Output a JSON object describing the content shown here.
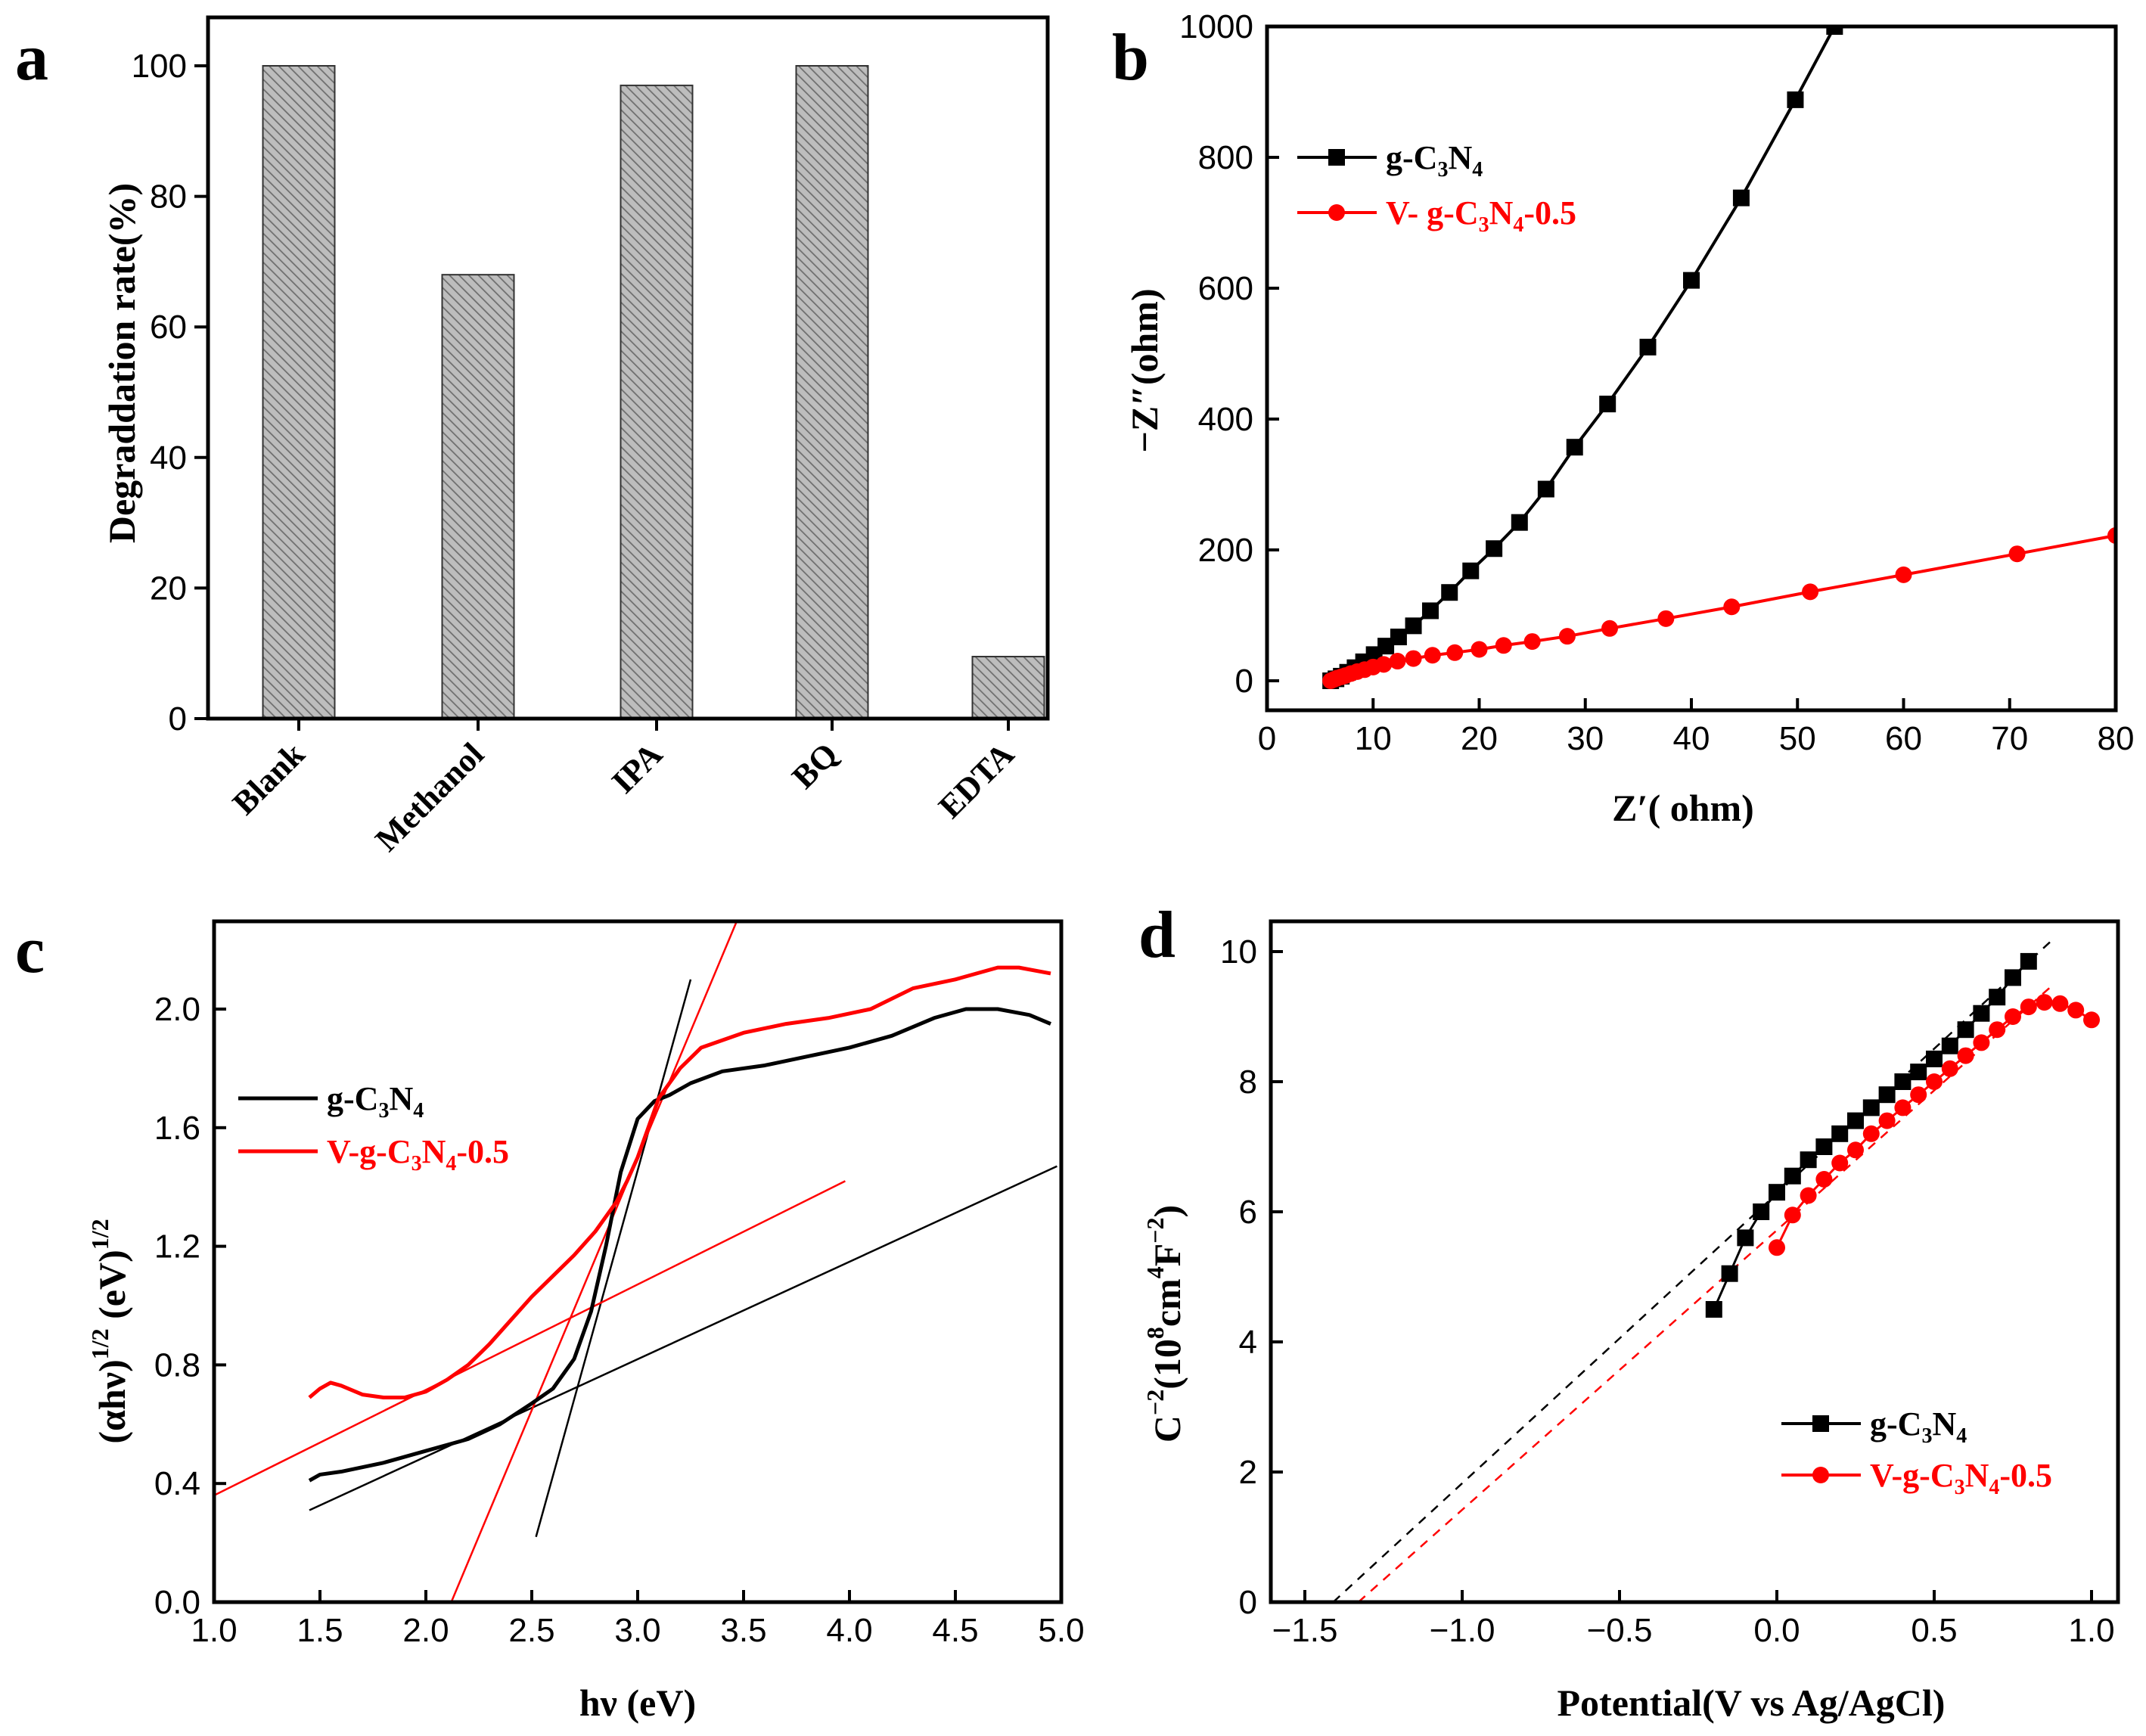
{
  "chart_data": [
    {
      "panel": "a",
      "type": "bar",
      "ylabel": "Degraddation rate(%)",
      "xlabel": "",
      "ylim": [
        0,
        105
      ],
      "yticks": [
        0,
        20,
        40,
        60,
        80,
        100
      ],
      "categories": [
        "Blank",
        "Methanol",
        "IPA",
        "BQ",
        "EDTA"
      ],
      "values": [
        100,
        68,
        97,
        100,
        9.5
      ],
      "bar_fill": "#a8a8a8",
      "bar_hatch": "diagonal"
    },
    {
      "panel": "b",
      "type": "scatter",
      "xlabel": "Z′( ohm)",
      "ylabel": "−Z″(ohm)",
      "xlim": [
        0,
        80
      ],
      "ylim": [
        -50,
        1000
      ],
      "xticks": [
        0,
        10,
        20,
        30,
        40,
        50,
        60,
        70,
        80
      ],
      "yticks": [
        0,
        200,
        400,
        600,
        800,
        1000
      ],
      "legend_position": "top-left",
      "series": [
        {
          "name": "g-C3N4",
          "label_parts": [
            "g-C",
            "3",
            "N",
            "4"
          ],
          "color": "#000000",
          "marker": "square",
          "x": [
            6,
            6.5,
            7,
            7.6,
            8.3,
            9.1,
            10.1,
            11.2,
            12.4,
            13.8,
            15.4,
            17.2,
            19.2,
            21.4,
            23.8,
            26.3,
            29.0,
            32.1,
            35.9,
            40.0,
            44.7,
            49.8,
            53.5
          ],
          "y": [
            0,
            3,
            7,
            13,
            20,
            29,
            40,
            53,
            67,
            84,
            107,
            135,
            168,
            202,
            242,
            293,
            357,
            423,
            510,
            612,
            738,
            888,
            1000
          ]
        },
        {
          "name": "V- g-C3N4-0.5",
          "label_parts": [
            "V- g-C",
            "3",
            "N",
            "4",
            "-0.5"
          ],
          "color": "#ff0000",
          "marker": "circle",
          "x": [
            6,
            6.3,
            6.6,
            7,
            7.4,
            7.9,
            8.5,
            9.2,
            10.0,
            11.0,
            12.3,
            13.8,
            15.6,
            17.7,
            20.0,
            22.3,
            25.0,
            28.3,
            32.3,
            37.6,
            43.8,
            51.2,
            60.0,
            70.7,
            80
          ],
          "y": [
            0,
            2,
            4,
            6,
            8,
            11,
            14,
            17,
            21,
            25,
            30,
            34,
            39,
            43,
            48,
            54,
            60,
            68,
            80,
            95,
            113,
            136,
            162,
            194,
            222
          ]
        }
      ]
    },
    {
      "panel": "c",
      "type": "line",
      "xlabel": "hν (eV)",
      "ylabel": "(αhν)^1/2 (eV)^1/2",
      "xlim": [
        1.0,
        5.0
      ],
      "ylim": [
        0.0,
        2.3
      ],
      "xticks": [
        "1.0",
        "1.5",
        "2.0",
        "2.5",
        "3.0",
        "3.5",
        "4.0",
        "4.5",
        "5.0"
      ],
      "yticks": [
        "0.0",
        "0.4",
        "0.8",
        "1.2",
        "1.6",
        "2.0"
      ],
      "legend_position": "middle-left",
      "series": [
        {
          "name": "g-C3N4",
          "label_parts": [
            "g-C",
            "3",
            "N",
            "4"
          ],
          "color": "#000000",
          "x": [
            1.45,
            1.5,
            1.6,
            1.8,
            2.0,
            2.2,
            2.35,
            2.5,
            2.6,
            2.7,
            2.78,
            2.85,
            2.92,
            3.0,
            3.08,
            3.15,
            3.25,
            3.4,
            3.6,
            3.8,
            4.0,
            4.2,
            4.4,
            4.55,
            4.7,
            4.85,
            4.95
          ],
          "y": [
            0.41,
            0.43,
            0.44,
            0.47,
            0.51,
            0.55,
            0.6,
            0.67,
            0.72,
            0.82,
            0.98,
            1.2,
            1.45,
            1.63,
            1.69,
            1.71,
            1.75,
            1.79,
            1.81,
            1.84,
            1.87,
            1.91,
            1.97,
            2.0,
            2.0,
            1.98,
            1.95
          ]
        },
        {
          "name": "V-g-C3N4-0.5",
          "label_parts": [
            "V-g-C",
            "3",
            "N",
            "4",
            "-0.5"
          ],
          "color": "#ff0000",
          "x": [
            1.45,
            1.5,
            1.55,
            1.6,
            1.7,
            1.8,
            1.9,
            2.0,
            2.1,
            2.2,
            2.3,
            2.4,
            2.5,
            2.6,
            2.7,
            2.8,
            2.9,
            2.95,
            3.0,
            3.05,
            3.1,
            3.2,
            3.3,
            3.5,
            3.7,
            3.9,
            4.1,
            4.3,
            4.5,
            4.7,
            4.8,
            4.95
          ],
          "y": [
            0.69,
            0.72,
            0.74,
            0.73,
            0.7,
            0.69,
            0.69,
            0.71,
            0.75,
            0.8,
            0.87,
            0.95,
            1.03,
            1.1,
            1.17,
            1.25,
            1.35,
            1.42,
            1.5,
            1.6,
            1.7,
            1.8,
            1.87,
            1.92,
            1.95,
            1.97,
            2.0,
            2.07,
            2.1,
            2.14,
            2.14,
            2.12
          ]
        }
      ],
      "fit_lines": [
        {
          "color": "#000000",
          "x": [
            2.52,
            3.25
          ],
          "y": [
            0.22,
            2.1
          ]
        },
        {
          "color": "#000000",
          "x": [
            1.45,
            4.98
          ],
          "y": [
            0.31,
            1.47
          ]
        },
        {
          "color": "#ff0000",
          "x": [
            2.12,
            3.47
          ],
          "y": [
            0.0,
            2.3
          ]
        },
        {
          "color": "#ff0000",
          "x": [
            1.0,
            3.98
          ],
          "y": [
            0.36,
            1.42
          ]
        }
      ]
    },
    {
      "panel": "d",
      "type": "scatter",
      "xlabel": "Potential(V vs Ag/AgCl)",
      "ylabel": "C^−2(10^8 cm^4 F^−2)",
      "xlim": [
        -1.6,
        1.1
      ],
      "ylim": [
        0,
        10.5
      ],
      "xticks": [
        "−1.5",
        "−1.0",
        "−0.5",
        "0.0",
        "0.5",
        "1.0"
      ],
      "yticks": [
        0,
        2,
        4,
        6,
        8,
        10
      ],
      "legend_position": "bottom-right",
      "series": [
        {
          "name": "g-C3N4",
          "label_parts": [
            "g-C",
            "3",
            "N",
            "4"
          ],
          "color": "#000000",
          "marker": "square",
          "x": [
            -0.2,
            -0.15,
            -0.1,
            -0.05,
            0.0,
            0.05,
            0.1,
            0.15,
            0.2,
            0.25,
            0.3,
            0.35,
            0.4,
            0.45,
            0.5,
            0.55,
            0.6,
            0.65,
            0.7,
            0.75,
            0.8
          ],
          "y": [
            4.5,
            5.05,
            5.6,
            6.0,
            6.3,
            6.55,
            6.8,
            7.0,
            7.2,
            7.4,
            7.6,
            7.8,
            8.0,
            8.15,
            8.35,
            8.55,
            8.8,
            9.05,
            9.3,
            9.6,
            9.85
          ]
        },
        {
          "name": "V-g-C3N4-0.5",
          "label_parts": [
            "V-g-C",
            "3",
            "N",
            "4",
            "-0.5"
          ],
          "color": "#ff0000",
          "marker": "circle",
          "x": [
            0.0,
            0.05,
            0.1,
            0.15,
            0.2,
            0.25,
            0.3,
            0.35,
            0.4,
            0.45,
            0.5,
            0.55,
            0.6,
            0.65,
            0.7,
            0.75,
            0.8,
            0.85,
            0.9,
            0.95,
            1.0
          ],
          "y": [
            5.45,
            5.95,
            6.25,
            6.5,
            6.75,
            6.95,
            7.2,
            7.4,
            7.6,
            7.8,
            8.0,
            8.2,
            8.4,
            8.6,
            8.8,
            9.0,
            9.15,
            9.22,
            9.2,
            9.1,
            8.95
          ]
        }
      ],
      "fit_lines": [
        {
          "color": "#000000",
          "x": [
            -1.41,
            0.88
          ],
          "y": [
            0.0,
            10.2
          ]
        },
        {
          "color": "#ff0000",
          "x": [
            -1.33,
            0.88
          ],
          "y": [
            0.0,
            9.5
          ]
        }
      ]
    }
  ],
  "panel_labels": [
    "a",
    "b",
    "c",
    "d"
  ]
}
